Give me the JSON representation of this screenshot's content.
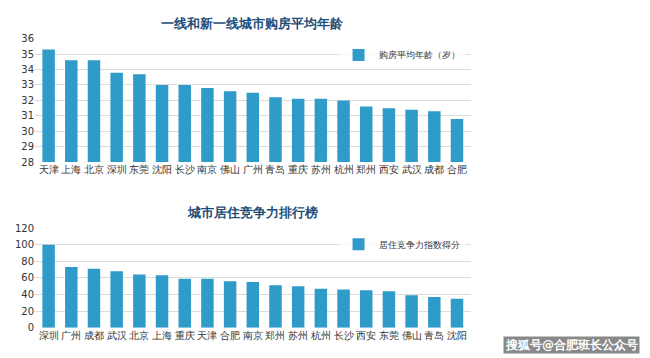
{
  "chart_data": [
    {
      "type": "bar",
      "title": "一线和新一线城市购房平均年龄",
      "categories": [
        "天津",
        "上海",
        "北京",
        "深圳",
        "东莞",
        "沈阳",
        "长沙",
        "南京",
        "佛山",
        "广州",
        "青岛",
        "重庆",
        "苏州",
        "杭州",
        "郑州",
        "西安",
        "武汉",
        "成都",
        "合肥"
      ],
      "series": [
        {
          "name": "购房平均年龄（岁）",
          "color": "#2e9bc8",
          "values": [
            35.3,
            34.6,
            34.6,
            33.8,
            33.7,
            33.0,
            33.0,
            32.8,
            32.6,
            32.5,
            32.2,
            32.1,
            32.1,
            32.0,
            31.6,
            31.5,
            31.4,
            31.3,
            30.8
          ]
        }
      ],
      "ylim": [
        28,
        36
      ],
      "yticks": [
        28,
        29,
        30,
        31,
        32,
        33,
        34,
        35,
        36
      ],
      "grid": true,
      "legend": "top-right"
    },
    {
      "type": "bar",
      "title": "城市居住竞争力排行榜",
      "categories": [
        "深圳",
        "广州",
        "成都",
        "武汉",
        "北京",
        "上海",
        "重庆",
        "天津",
        "合肥",
        "南京",
        "郑州",
        "苏州",
        "杭州",
        "长沙",
        "西安",
        "东莞",
        "佛山",
        "青岛",
        "沈阳"
      ],
      "series": [
        {
          "name": "居住竞争力指数得分",
          "color": "#2e9bc8",
          "values": [
            100,
            73,
            71,
            68,
            64,
            63,
            59,
            59,
            56,
            55,
            51,
            50,
            47,
            46,
            45,
            44,
            39,
            37,
            35
          ]
        }
      ],
      "ylim": [
        0,
        120
      ],
      "yticks": [
        0,
        20,
        40,
        60,
        80,
        100,
        120
      ],
      "grid": true,
      "legend": "top-right",
      "annotations": [
        "搜狐号@合肥班长公众号"
      ]
    }
  ]
}
